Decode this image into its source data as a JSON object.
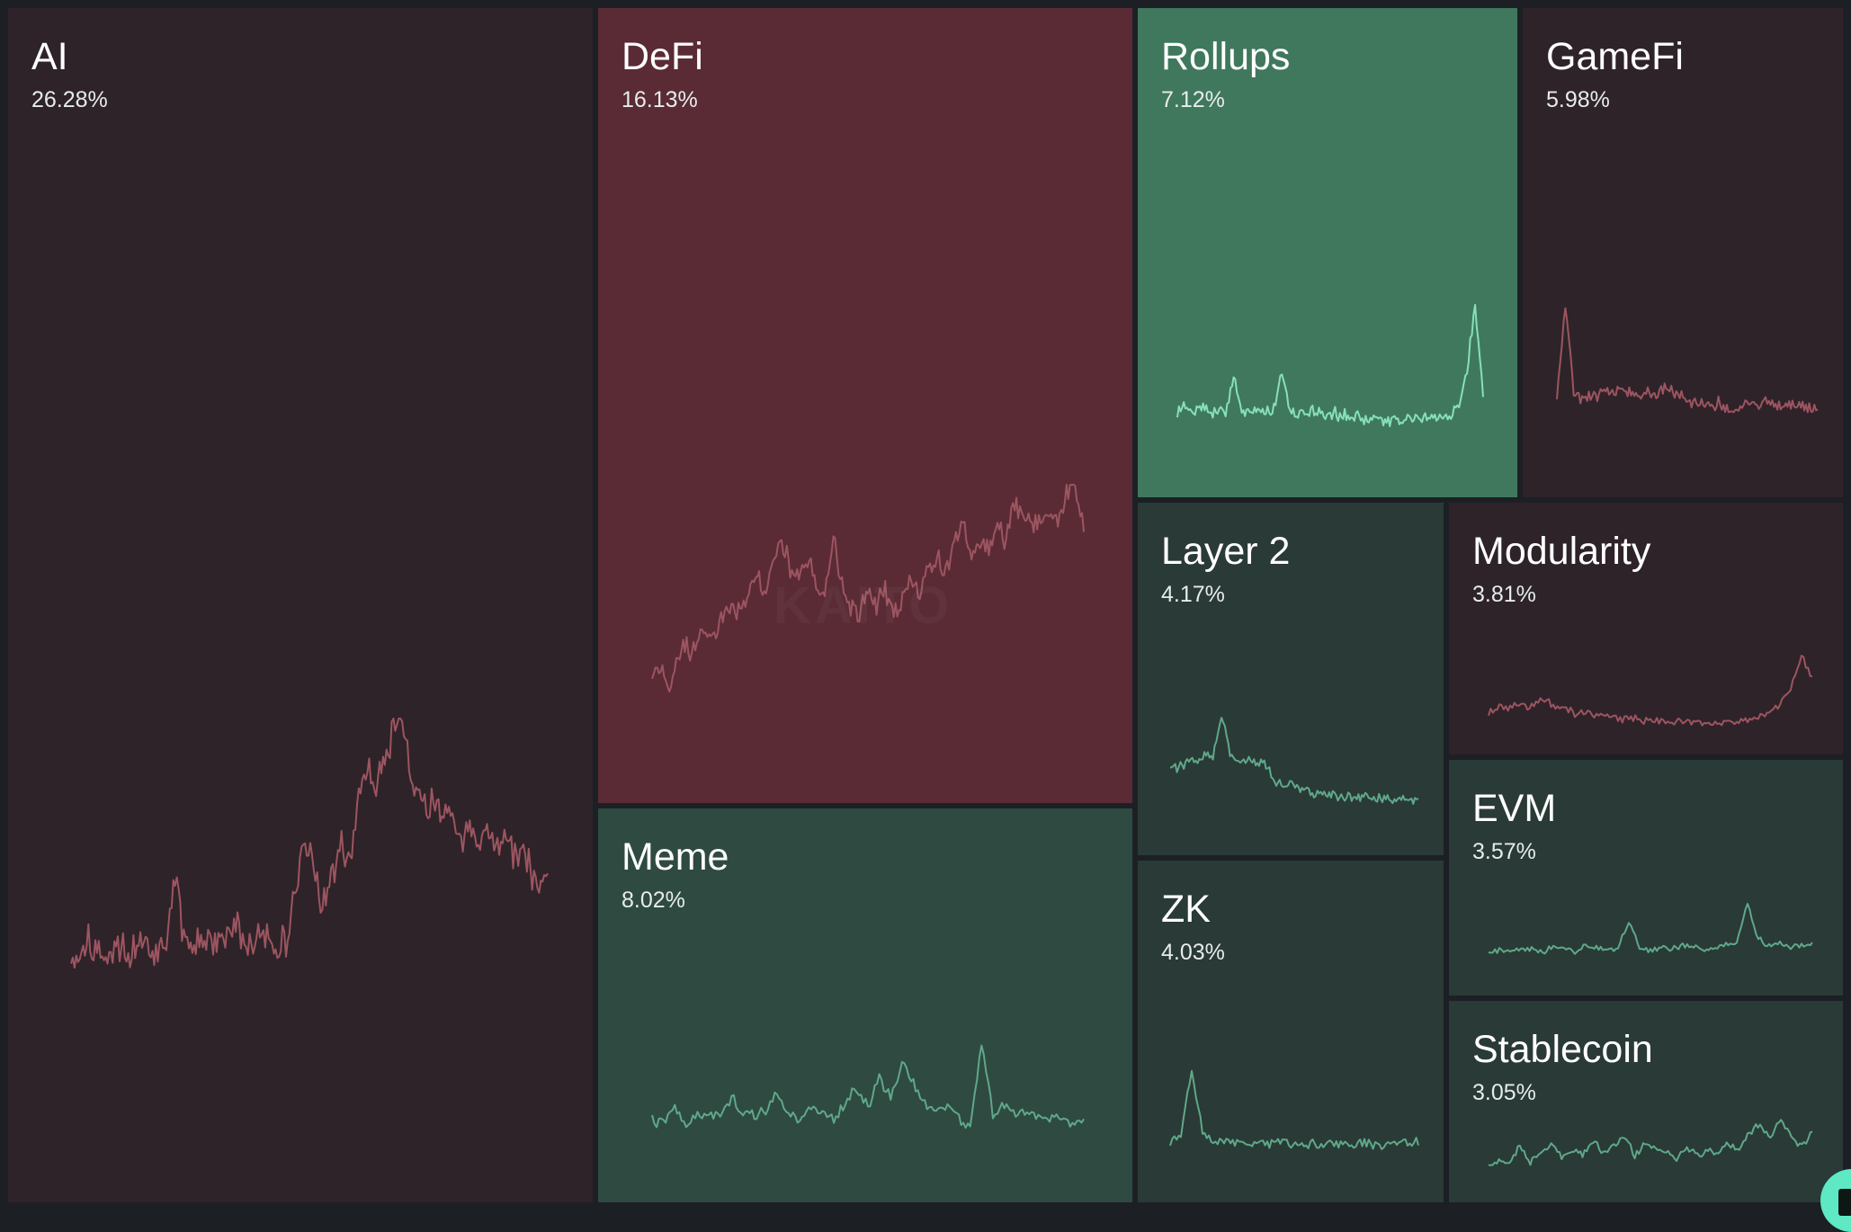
{
  "colors": {
    "background": "#1c2024",
    "strong_down": "#5a2b35",
    "weak_down": "#2e2329",
    "strong_up": "#40785e",
    "medium_up": "#2f4a41",
    "weak_up": "#2a3a36",
    "line_down": "#9c5560",
    "line_up": "#5fa88a",
    "line_up_bright": "#86e0b8"
  },
  "watermark": "KAITO",
  "chart_data": {
    "type": "treemap",
    "tiles": [
      {
        "name": "AI",
        "percent": "26.28%",
        "value": 26.28,
        "trend": "down",
        "sparkline": [
          0.27,
          0.22,
          0.28,
          0.24,
          0.2,
          0.27,
          0.25,
          0.23,
          0.3,
          0.26,
          0.24,
          0.28,
          0.5,
          0.29,
          0.26,
          0.31,
          0.28,
          0.3,
          0.29,
          0.33,
          0.3,
          0.27,
          0.34,
          0.28,
          0.26,
          0.3,
          0.45,
          0.62,
          0.52,
          0.4,
          0.47,
          0.6,
          0.52,
          0.72,
          0.86,
          0.78,
          0.82,
          0.96,
          1.0,
          0.84,
          0.76,
          0.7,
          0.73,
          0.66,
          0.68,
          0.62,
          0.63,
          0.6,
          0.64,
          0.58,
          0.61,
          0.55,
          0.57,
          0.52,
          0.45,
          0.5
        ]
      },
      {
        "name": "DeFi",
        "percent": "16.13%",
        "value": 16.13,
        "trend": "down",
        "sparkline": [
          0.1,
          0.12,
          0.0,
          0.15,
          0.22,
          0.18,
          0.3,
          0.25,
          0.35,
          0.4,
          0.38,
          0.48,
          0.55,
          0.5,
          0.62,
          0.72,
          0.6,
          0.55,
          0.64,
          0.52,
          0.45,
          0.78,
          0.5,
          0.4,
          0.36,
          0.48,
          0.42,
          0.5,
          0.38,
          0.46,
          0.55,
          0.48,
          0.6,
          0.65,
          0.58,
          0.7,
          0.85,
          0.62,
          0.75,
          0.68,
          0.8,
          0.72,
          0.92,
          0.85,
          0.78,
          0.82,
          0.88,
          0.8,
          0.95,
          1.0,
          0.8
        ]
      },
      {
        "name": "Rollups",
        "percent": "7.12%",
        "value": 7.12,
        "trend": "up",
        "sparkline": [
          0.13,
          0.15,
          0.12,
          0.14,
          0.11,
          0.13,
          0.14,
          0.42,
          0.12,
          0.15,
          0.13,
          0.11,
          0.14,
          0.44,
          0.12,
          0.1,
          0.13,
          0.11,
          0.09,
          0.12,
          0.1,
          0.08,
          0.1,
          0.06,
          0.05,
          0.07,
          0.04,
          0.06,
          0.05,
          0.07,
          0.06,
          0.08,
          0.07,
          0.09,
          0.1,
          0.18,
          0.45,
          1.0,
          0.3
        ]
      },
      {
        "name": "GameFi",
        "percent": "5.98%",
        "value": 5.98,
        "trend": "down",
        "sparkline": [
          0.22,
          1.0,
          0.25,
          0.2,
          0.23,
          0.21,
          0.26,
          0.24,
          0.28,
          0.25,
          0.22,
          0.26,
          0.23,
          0.3,
          0.26,
          0.2,
          0.18,
          0.15,
          0.12,
          0.16,
          0.14,
          0.1,
          0.12,
          0.15,
          0.13,
          0.17,
          0.14,
          0.12,
          0.15,
          0.13,
          0.1,
          0.12
        ]
      },
      {
        "name": "Layer 2",
        "percent": "4.17%",
        "value": 4.17,
        "trend": "up",
        "sparkline": [
          0.45,
          0.4,
          0.5,
          0.48,
          0.55,
          0.5,
          1.0,
          0.55,
          0.45,
          0.52,
          0.48,
          0.5,
          0.3,
          0.22,
          0.25,
          0.18,
          0.15,
          0.12,
          0.1,
          0.12,
          0.08,
          0.1,
          0.07,
          0.09,
          0.06,
          0.08,
          0.07,
          0.08,
          0.06,
          0.07
        ]
      },
      {
        "name": "Modularity",
        "percent": "3.81%",
        "value": 3.81,
        "trend": "down",
        "sparkline": [
          0.22,
          0.3,
          0.26,
          0.34,
          0.28,
          0.4,
          0.3,
          0.26,
          0.2,
          0.22,
          0.15,
          0.18,
          0.12,
          0.14,
          0.1,
          0.12,
          0.08,
          0.1,
          0.07,
          0.09,
          0.05,
          0.08,
          0.06,
          0.1,
          0.12,
          0.15,
          0.2,
          0.32,
          0.55,
          1.0,
          0.65
        ]
      },
      {
        "name": "Meme",
        "percent": "8.02%",
        "value": 8.02,
        "trend": "up",
        "sparkline": [
          0.22,
          0.2,
          0.35,
          0.18,
          0.3,
          0.25,
          0.28,
          0.45,
          0.3,
          0.26,
          0.32,
          0.48,
          0.28,
          0.24,
          0.36,
          0.3,
          0.25,
          0.4,
          0.55,
          0.35,
          0.65,
          0.45,
          0.8,
          0.6,
          0.38,
          0.3,
          0.35,
          0.25,
          0.15,
          0.98,
          0.3,
          0.35,
          0.28,
          0.32,
          0.25,
          0.22,
          0.28,
          0.2,
          0.24
        ]
      },
      {
        "name": "ZK",
        "percent": "4.03%",
        "value": 4.03,
        "trend": "up",
        "sparkline": [
          0.1,
          0.15,
          1.0,
          0.2,
          0.12,
          0.1,
          0.11,
          0.09,
          0.1,
          0.08,
          0.1,
          0.09,
          0.07,
          0.08,
          0.06,
          0.08,
          0.07,
          0.06,
          0.08,
          0.07,
          0.06,
          0.08,
          0.1,
          0.09
        ]
      },
      {
        "name": "EVM",
        "percent": "3.57%",
        "value": 3.57,
        "trend": "up",
        "sparkline": [
          0.12,
          0.15,
          0.1,
          0.18,
          0.14,
          0.12,
          0.2,
          0.15,
          0.13,
          0.22,
          0.18,
          0.15,
          0.2,
          0.65,
          0.18,
          0.15,
          0.2,
          0.16,
          0.22,
          0.18,
          0.15,
          0.2,
          0.25,
          0.3,
          1.0,
          0.35,
          0.22,
          0.28,
          0.2,
          0.25,
          0.22
        ]
      },
      {
        "name": "Stablecoin",
        "percent": "3.05%",
        "value": 3.05,
        "trend": "up",
        "sparkline": [
          0.2,
          0.35,
          0.25,
          0.55,
          0.3,
          0.45,
          0.6,
          0.35,
          0.5,
          0.4,
          0.65,
          0.45,
          0.55,
          0.7,
          0.4,
          0.6,
          0.5,
          0.45,
          0.35,
          0.55,
          0.4,
          0.5,
          0.45,
          0.6,
          0.5,
          0.75,
          0.9,
          0.65,
          1.0,
          0.7,
          0.55,
          0.75
        ]
      }
    ]
  }
}
